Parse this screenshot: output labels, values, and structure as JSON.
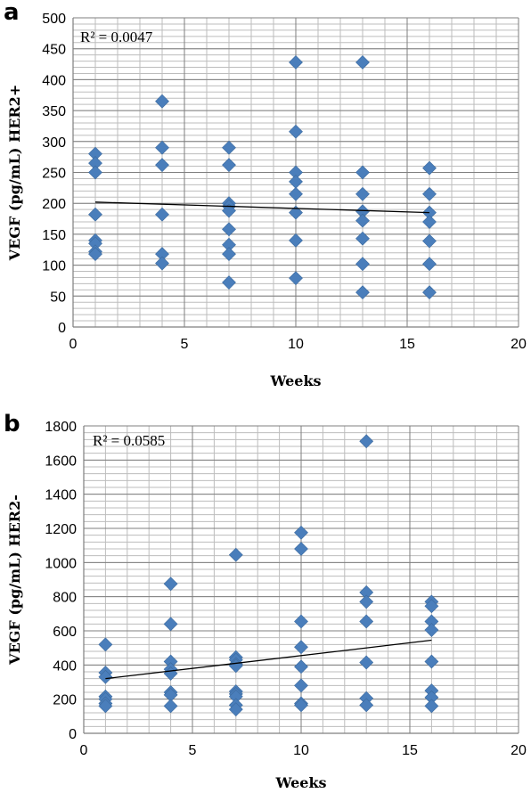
{
  "panels": [
    {
      "label": "a",
      "r2_text": "R² = 0.0047",
      "chart_data": {
        "type": "scatter",
        "xlabel": "Weeks",
        "ylabel": "VEGF (pg/mL) HER2+",
        "xlim": [
          0,
          20
        ],
        "ylim": [
          0,
          500
        ],
        "x_ticks": [
          0,
          5,
          10,
          15,
          20
        ],
        "y_ticks": [
          0,
          50,
          100,
          150,
          200,
          250,
          300,
          350,
          400,
          450,
          500
        ],
        "grid": true,
        "series": [
          {
            "points": [
              [
                1,
                280
              ],
              [
                1,
                265
              ],
              [
                1,
                250
              ],
              [
                1,
                182
              ],
              [
                1,
                140
              ],
              [
                1,
                135
              ],
              [
                1,
                122
              ],
              [
                1,
                118
              ],
              [
                4,
                365
              ],
              [
                4,
                290
              ],
              [
                4,
                262
              ],
              [
                4,
                182
              ],
              [
                4,
                118
              ],
              [
                4,
                103
              ],
              [
                7,
                290
              ],
              [
                7,
                262
              ],
              [
                7,
                200
              ],
              [
                7,
                195
              ],
              [
                7,
                188
              ],
              [
                7,
                158
              ],
              [
                7,
                133
              ],
              [
                7,
                118
              ],
              [
                7,
                72
              ],
              [
                10,
                428
              ],
              [
                10,
                316
              ],
              [
                10,
                250
              ],
              [
                10,
                235
              ],
              [
                10,
                215
              ],
              [
                10,
                185
              ],
              [
                10,
                140
              ],
              [
                10,
                79
              ],
              [
                13,
                428
              ],
              [
                13,
                250
              ],
              [
                13,
                215
              ],
              [
                13,
                187
              ],
              [
                13,
                172
              ],
              [
                13,
                143
              ],
              [
                13,
                102
              ],
              [
                13,
                56
              ],
              [
                16,
                257
              ],
              [
                16,
                215
              ],
              [
                16,
                185
              ],
              [
                16,
                170
              ],
              [
                16,
                139
              ],
              [
                16,
                102
              ],
              [
                16,
                56
              ]
            ]
          }
        ],
        "trendline": {
          "type": "linear",
          "x": [
            1,
            16
          ],
          "y": [
            202,
            185
          ]
        }
      }
    },
    {
      "label": "b",
      "r2_text": "R² = 0.0585",
      "chart_data": {
        "type": "scatter",
        "xlabel": "Weeks",
        "ylabel": "VEGF (pg/mL) HER2-",
        "xlim": [
          0,
          20
        ],
        "ylim": [
          0,
          1800
        ],
        "x_ticks": [
          0,
          5,
          10,
          15,
          20
        ],
        "y_ticks": [
          0,
          200,
          400,
          600,
          800,
          1000,
          1200,
          1400,
          1600,
          1800
        ],
        "grid": true,
        "series": [
          {
            "points": [
              [
                1,
                520
              ],
              [
                1,
                355
              ],
              [
                1,
                330
              ],
              [
                1,
                215
              ],
              [
                1,
                200
              ],
              [
                1,
                175
              ],
              [
                1,
                160
              ],
              [
                4,
                875
              ],
              [
                4,
                640
              ],
              [
                4,
                420
              ],
              [
                4,
                375
              ],
              [
                4,
                350
              ],
              [
                4,
                240
              ],
              [
                4,
                225
              ],
              [
                4,
                160
              ],
              [
                7,
                1045
              ],
              [
                7,
                445
              ],
              [
                7,
                430
              ],
              [
                7,
                405
              ],
              [
                7,
                395
              ],
              [
                7,
                245
              ],
              [
                7,
                230
              ],
              [
                7,
                215
              ],
              [
                7,
                165
              ],
              [
                7,
                140
              ],
              [
                10,
                1175
              ],
              [
                10,
                1080
              ],
              [
                10,
                655
              ],
              [
                10,
                505
              ],
              [
                10,
                390
              ],
              [
                10,
                280
              ],
              [
                10,
                175
              ],
              [
                10,
                165
              ],
              [
                13,
                1710
              ],
              [
                13,
                825
              ],
              [
                13,
                770
              ],
              [
                13,
                655
              ],
              [
                13,
                415
              ],
              [
                13,
                205
              ],
              [
                13,
                165
              ],
              [
                16,
                770
              ],
              [
                16,
                745
              ],
              [
                16,
                655
              ],
              [
                16,
                605
              ],
              [
                16,
                420
              ],
              [
                16,
                250
              ],
              [
                16,
                210
              ],
              [
                16,
                160
              ]
            ]
          }
        ],
        "trendline": {
          "type": "linear",
          "x": [
            1,
            16
          ],
          "y": [
            320,
            545
          ]
        }
      }
    }
  ],
  "colors": {
    "marker": "#4a7ebb",
    "trendline": "#000000"
  }
}
